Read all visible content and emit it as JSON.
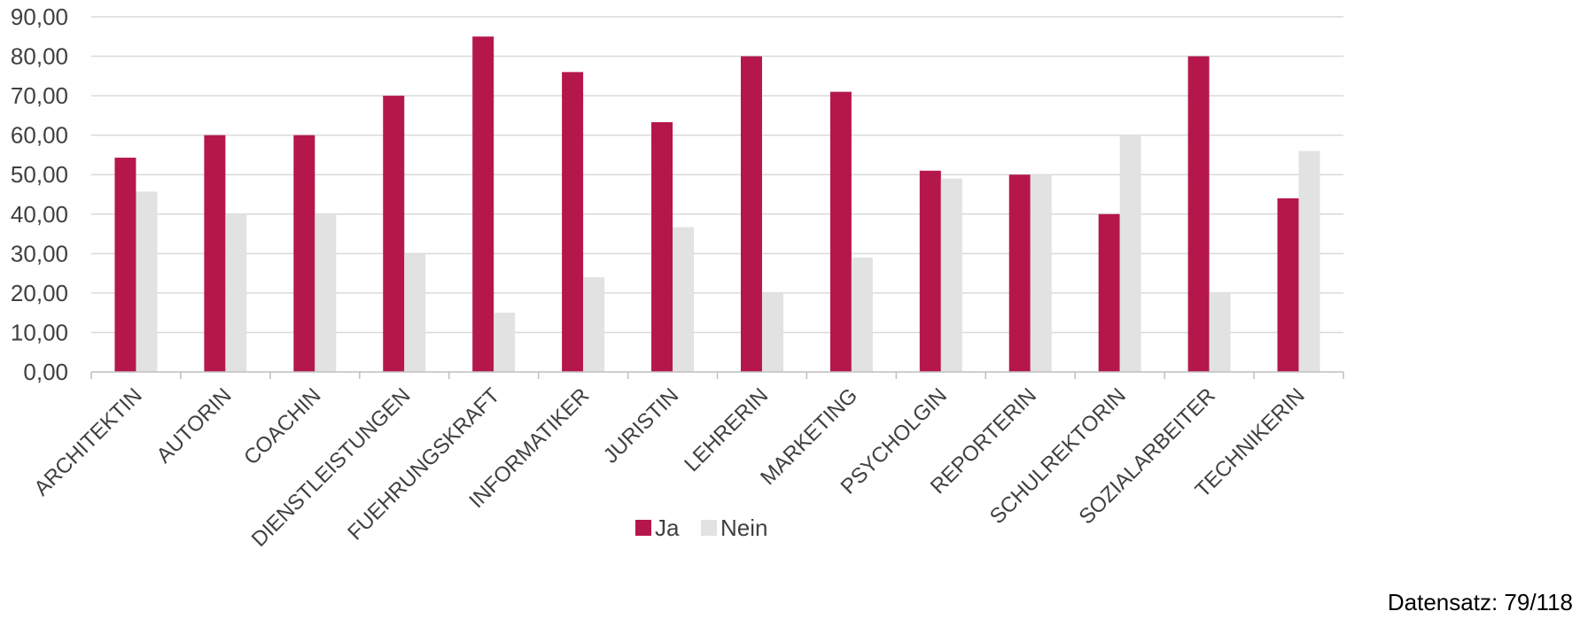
{
  "chart_data": {
    "type": "bar",
    "categories": [
      "ARCHITEKTIN",
      "AUTORIN",
      "COACHIN",
      "DIENSTLEISTUNGEN",
      "FUEHRUNGSKRAFT",
      "INFORMATIKER",
      "JURISTIN",
      "LEHRERIN",
      "MARKETING",
      "PSYCHOLGIN",
      "REPORTERIN",
      "SCHULREKTORIN",
      "SOZIALARBEITER",
      "TECHNIKERIN"
    ],
    "series": [
      {
        "name": "Ja",
        "color": "#B5174B",
        "values": [
          54.3,
          60,
          60,
          70,
          85,
          76,
          63.3,
          80,
          71,
          51,
          50,
          40,
          80,
          44
        ]
      },
      {
        "name": "Nein",
        "color": "#E2E2E2",
        "values": [
          45.7,
          40,
          40,
          30,
          15,
          24,
          36.7,
          20,
          29,
          49,
          50,
          60,
          20,
          56
        ]
      }
    ],
    "ylim": [
      0,
      90
    ],
    "yticks": [
      0,
      10,
      20,
      30,
      40,
      50,
      60,
      70,
      80,
      90
    ],
    "ytick_labels": [
      "0,00",
      "10,00",
      "20,00",
      "30,00",
      "40,00",
      "50,00",
      "60,00",
      "70,00",
      "80,00",
      "90,00"
    ],
    "grid": true,
    "legend_position": "bottom-center"
  },
  "footnote": "Datensatz: 79/118"
}
